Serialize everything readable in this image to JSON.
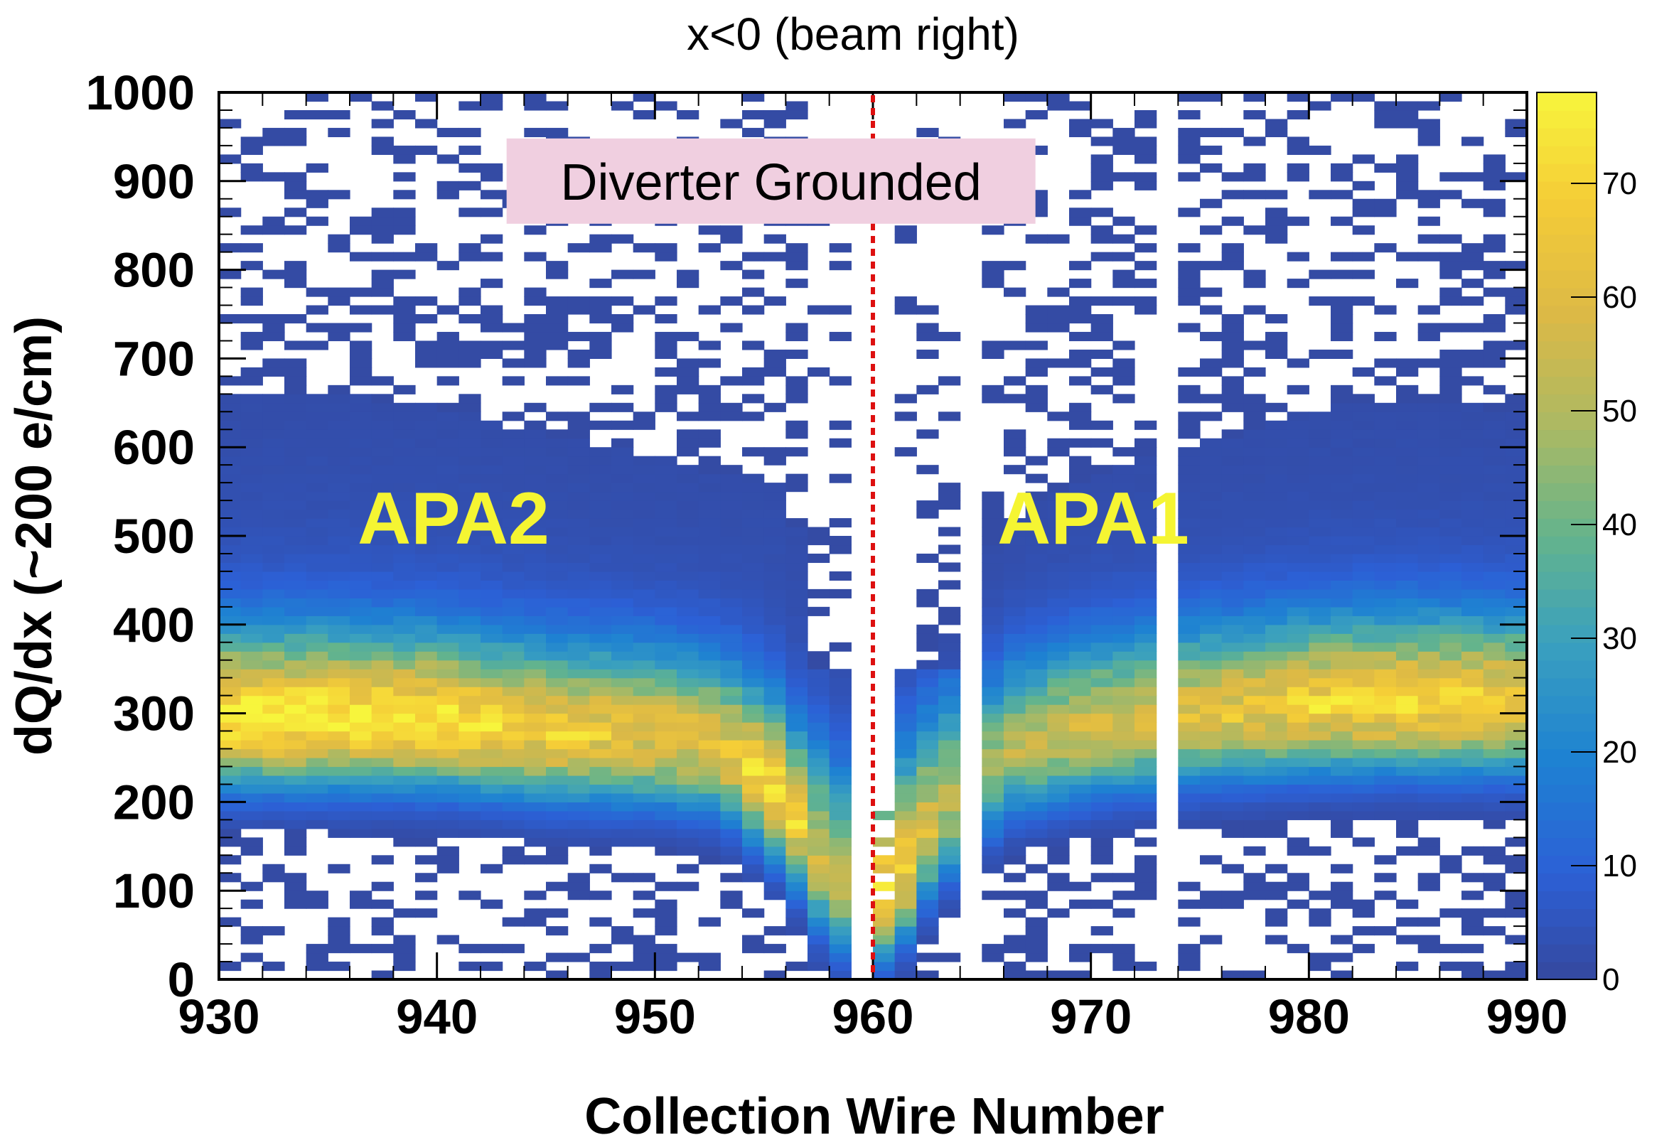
{
  "chart_data": {
    "type": "heatmap",
    "title": "x<0 (beam right)",
    "xlabel": "Collection Wire Number",
    "ylabel": "dQ/dx (~200 e/cm)",
    "xlim": [
      930,
      990
    ],
    "ylim": [
      0,
      1000
    ],
    "xticks": [
      "930",
      "940",
      "950",
      "960",
      "970",
      "980",
      "990"
    ],
    "yticks": [
      "0",
      "100",
      "200",
      "300",
      "400",
      "500",
      "600",
      "700",
      "800",
      "900",
      "1000"
    ],
    "colorbar": {
      "range": [
        0,
        78
      ],
      "ticks": [
        "0",
        "10",
        "20",
        "30",
        "40",
        "50",
        "60",
        "70"
      ]
    },
    "bins": {
      "x_width": 1,
      "y_width": 10
    },
    "colors": {
      "low": "#35489e",
      "mid": "#4fa6b8",
      "high": "#f7f53c",
      "divider": "#dd1010"
    },
    "divider_line": {
      "x": 960,
      "style": "dotted",
      "color": "#dd1010"
    },
    "dead_wires": [
      959,
      964,
      973
    ],
    "peak_profile": [
      {
        "wire": 930,
        "dqdx": 285,
        "counts": 70
      },
      {
        "wire": 935,
        "dqdx": 285,
        "counts": 70
      },
      {
        "wire": 940,
        "dqdx": 283,
        "counts": 68
      },
      {
        "wire": 945,
        "dqdx": 270,
        "counts": 62
      },
      {
        "wire": 950,
        "dqdx": 265,
        "counts": 58
      },
      {
        "wire": 953,
        "dqdx": 255,
        "counts": 55
      },
      {
        "wire": 955,
        "dqdx": 215,
        "counts": 65
      },
      {
        "wire": 956,
        "dqdx": 195,
        "counts": 68
      },
      {
        "wire": 957,
        "dqdx": 150,
        "counts": 55
      },
      {
        "wire": 958,
        "dqdx": 100,
        "counts": 45
      },
      {
        "wire": 961,
        "dqdx": 90,
        "counts": 68
      },
      {
        "wire": 962,
        "dqdx": 140,
        "counts": 55
      },
      {
        "wire": 963,
        "dqdx": 175,
        "counts": 50
      },
      {
        "wire": 965,
        "dqdx": 215,
        "counts": 42
      },
      {
        "wire": 966,
        "dqdx": 250,
        "counts": 45
      },
      {
        "wire": 970,
        "dqdx": 275,
        "counts": 52
      },
      {
        "wire": 975,
        "dqdx": 290,
        "counts": 55
      },
      {
        "wire": 980,
        "dqdx": 300,
        "counts": 62
      },
      {
        "wire": 985,
        "dqdx": 302,
        "counts": 65
      },
      {
        "wire": 989,
        "dqdx": 300,
        "counts": 62
      }
    ],
    "annotations": [
      {
        "text": "Diverter Grounded",
        "x": 955,
        "y": 900,
        "box_color": "#f0cfe0"
      },
      {
        "text": "APA2",
        "x": 945,
        "y": 520
      },
      {
        "text": "APA1",
        "x": 975,
        "y": 520
      }
    ]
  }
}
